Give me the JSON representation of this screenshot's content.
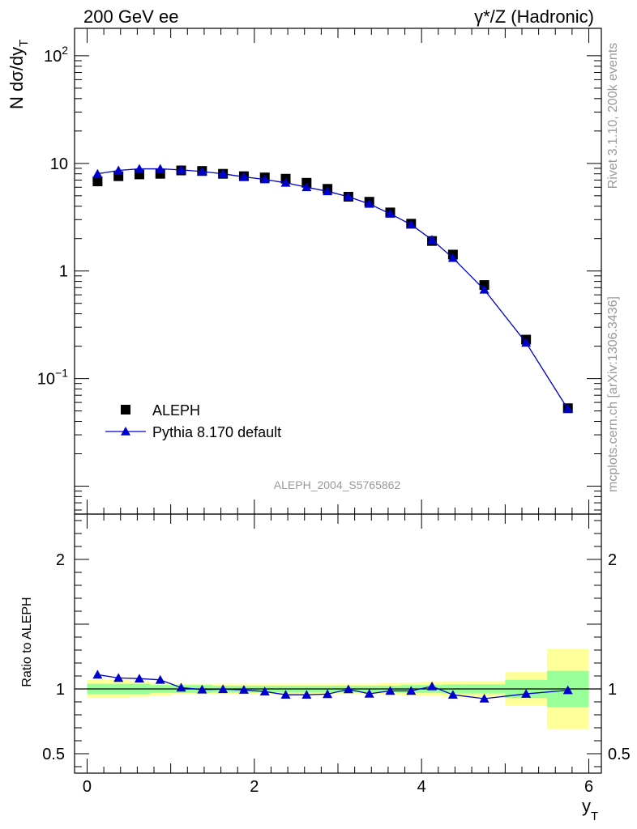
{
  "header": {
    "left": "200 GeV ee",
    "right": "γ*/Z (Hadronic)"
  },
  "side_labels": {
    "rivet": "Rivet 3.1.10,  200k events",
    "mcplots": "mcplots.cern.ch [arXiv:1306.3436]"
  },
  "watermark": "ALEPH_2004_S5765862",
  "chart_data": [
    {
      "type": "scatter",
      "panel": "main",
      "ylabel": "N dσ/dy",
      "ylabel_sub": "T",
      "yscale": "log",
      "xlim": [
        -0.15,
        6.15
      ],
      "ylim": [
        0.0055,
        180
      ],
      "ytick_labels": [
        {
          "value": 0.1,
          "base": "10",
          "exp": "−1"
        },
        {
          "value": 1,
          "base": "1",
          "exp": ""
        },
        {
          "value": 10,
          "base": "10",
          "exp": ""
        },
        {
          "value": 100,
          "base": "10",
          "exp": "2"
        }
      ],
      "legend_position": "lower-left",
      "series": [
        {
          "name": "ALEPH",
          "marker": "square",
          "color": "#000000",
          "x": [
            0.125,
            0.375,
            0.625,
            0.875,
            1.125,
            1.375,
            1.625,
            1.875,
            2.125,
            2.375,
            2.625,
            2.875,
            3.125,
            3.375,
            3.625,
            3.875,
            4.125,
            4.375,
            4.75,
            5.25,
            5.75
          ],
          "y": [
            6.8,
            7.6,
            7.9,
            8.0,
            8.6,
            8.5,
            8.0,
            7.6,
            7.4,
            7.2,
            6.6,
            5.8,
            4.9,
            4.4,
            3.5,
            2.75,
            1.9,
            1.42,
            0.74,
            0.23,
            0.053
          ]
        },
        {
          "name": "Pythia 8.170 default",
          "marker": "triangle",
          "color": "#0000cc",
          "x": [
            0.125,
            0.375,
            0.625,
            0.875,
            1.125,
            1.375,
            1.625,
            1.875,
            2.125,
            2.375,
            2.625,
            2.875,
            3.125,
            3.375,
            3.625,
            3.875,
            4.125,
            4.375,
            4.75,
            5.25,
            5.75
          ],
          "y": [
            8.0,
            8.6,
            8.9,
            8.9,
            8.7,
            8.4,
            8.0,
            7.5,
            7.1,
            6.6,
            6.0,
            5.5,
            4.9,
            4.2,
            3.4,
            2.7,
            1.95,
            1.32,
            0.67,
            0.215,
            0.052
          ]
        }
      ]
    },
    {
      "type": "line",
      "panel": "ratio",
      "ylabel": "Ratio to ALEPH",
      "xlabel": "y",
      "xlabel_sub": "T",
      "xlim": [
        -0.15,
        6.15
      ],
      "ylim": [
        0.35,
        2.35
      ],
      "xticks": [
        0,
        2,
        4,
        6
      ],
      "ytick_labels": [
        {
          "value": 0.5,
          "label": "0.5"
        },
        {
          "value": 1,
          "label": "1"
        },
        {
          "value": 2,
          "label": "2"
        }
      ],
      "reference_line": 1,
      "uncertainty_bands": {
        "colors": {
          "inner": "#99ff99",
          "outer": "#ffff99"
        },
        "bins": [
          {
            "x0": 0.0,
            "x1": 0.25,
            "inner": [
              0.96,
              1.04
            ],
            "outer": [
              0.93,
              1.07
            ]
          },
          {
            "x0": 0.25,
            "x1": 0.5,
            "inner": [
              0.96,
              1.04
            ],
            "outer": [
              0.93,
              1.07
            ]
          },
          {
            "x0": 0.5,
            "x1": 0.75,
            "inner": [
              0.96,
              1.04
            ],
            "outer": [
              0.94,
              1.06
            ]
          },
          {
            "x0": 0.75,
            "x1": 1.0,
            "inner": [
              0.97,
              1.03
            ],
            "outer": [
              0.95,
              1.05
            ]
          },
          {
            "x0": 1.0,
            "x1": 1.25,
            "inner": [
              0.97,
              1.03
            ],
            "outer": [
              0.96,
              1.04
            ]
          },
          {
            "x0": 1.25,
            "x1": 1.5,
            "inner": [
              0.97,
              1.03
            ],
            "outer": [
              0.96,
              1.04
            ]
          },
          {
            "x0": 1.5,
            "x1": 1.75,
            "inner": [
              0.975,
              1.025
            ],
            "outer": [
              0.96,
              1.04
            ]
          },
          {
            "x0": 1.75,
            "x1": 2.0,
            "inner": [
              0.975,
              1.025
            ],
            "outer": [
              0.96,
              1.04
            ]
          },
          {
            "x0": 2.0,
            "x1": 2.25,
            "inner": [
              0.975,
              1.025
            ],
            "outer": [
              0.96,
              1.04
            ]
          },
          {
            "x0": 2.25,
            "x1": 2.5,
            "inner": [
              0.975,
              1.025
            ],
            "outer": [
              0.96,
              1.04
            ]
          },
          {
            "x0": 2.5,
            "x1": 2.75,
            "inner": [
              0.975,
              1.025
            ],
            "outer": [
              0.96,
              1.04
            ]
          },
          {
            "x0": 2.75,
            "x1": 3.0,
            "inner": [
              0.975,
              1.025
            ],
            "outer": [
              0.96,
              1.04
            ]
          },
          {
            "x0": 3.0,
            "x1": 3.25,
            "inner": [
              0.975,
              1.025
            ],
            "outer": [
              0.96,
              1.04
            ]
          },
          {
            "x0": 3.25,
            "x1": 3.5,
            "inner": [
              0.975,
              1.025
            ],
            "outer": [
              0.96,
              1.04
            ]
          },
          {
            "x0": 3.5,
            "x1": 3.75,
            "inner": [
              0.975,
              1.025
            ],
            "outer": [
              0.955,
              1.045
            ]
          },
          {
            "x0": 3.75,
            "x1": 4.0,
            "inner": [
              0.97,
              1.03
            ],
            "outer": [
              0.95,
              1.05
            ]
          },
          {
            "x0": 4.0,
            "x1": 4.25,
            "inner": [
              0.97,
              1.03
            ],
            "outer": [
              0.945,
              1.055
            ]
          },
          {
            "x0": 4.25,
            "x1": 4.5,
            "inner": [
              0.965,
              1.035
            ],
            "outer": [
              0.94,
              1.06
            ]
          },
          {
            "x0": 4.5,
            "x1": 5.0,
            "inner": [
              0.965,
              1.035
            ],
            "outer": [
              0.94,
              1.06
            ]
          },
          {
            "x0": 5.0,
            "x1": 5.5,
            "inner": [
              0.93,
              1.07
            ],
            "outer": [
              0.87,
              1.13
            ]
          },
          {
            "x0": 5.5,
            "x1": 6.0,
            "inner": [
              0.86,
              1.14
            ],
            "outer": [
              0.69,
              1.31
            ]
          }
        ]
      },
      "series": [
        {
          "name": "Pythia 8.170 default",
          "marker": "triangle",
          "color": "#0000cc",
          "x": [
            0.125,
            0.375,
            0.625,
            0.875,
            1.125,
            1.375,
            1.625,
            1.875,
            2.125,
            2.375,
            2.625,
            2.875,
            3.125,
            3.375,
            3.625,
            3.875,
            4.125,
            4.375,
            4.75,
            5.25,
            5.75
          ],
          "y": [
            1.11,
            1.085,
            1.08,
            1.07,
            1.01,
            0.995,
            0.998,
            0.993,
            0.98,
            0.955,
            0.955,
            0.96,
            0.997,
            0.963,
            0.985,
            0.985,
            1.02,
            0.955,
            0.925,
            0.962,
            0.99
          ]
        }
      ]
    }
  ]
}
